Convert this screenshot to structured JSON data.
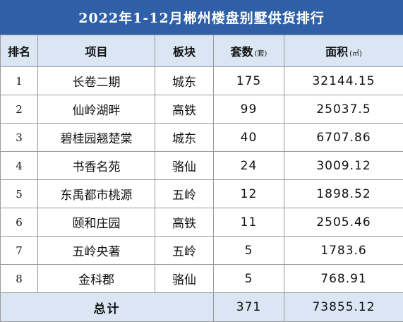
{
  "title": "2022年1-12月郴州楼盘别墅供货排行",
  "headers": {
    "rank": "排名",
    "project": "项目",
    "block": "板块",
    "units": "套数",
    "units_unit": "(套)",
    "area": "面积",
    "area_unit": "(㎡)"
  },
  "rows": [
    {
      "rank": "1",
      "project": "长卷二期",
      "block": "城东",
      "units": "175",
      "area": "32144.15"
    },
    {
      "rank": "2",
      "project": "仙岭湖畔",
      "block": "高铁",
      "units": "99",
      "area": "25037.5"
    },
    {
      "rank": "3",
      "project": "碧桂园翘楚棠",
      "block": "城东",
      "units": "40",
      "area": "6707.86"
    },
    {
      "rank": "4",
      "project": "书香名苑",
      "block": "骆仙",
      "units": "24",
      "area": "3009.12"
    },
    {
      "rank": "5",
      "project": "东禹都市桃源",
      "block": "五岭",
      "units": "12",
      "area": "1898.52"
    },
    {
      "rank": "6",
      "project": "颐和庄园",
      "block": "高铁",
      "units": "11",
      "area": "2505.46"
    },
    {
      "rank": "7",
      "project": "五岭央著",
      "block": "五岭",
      "units": "5",
      "area": "1783.6"
    },
    {
      "rank": "8",
      "project": "金科郡",
      "block": "骆仙",
      "units": "5",
      "area": "768.91"
    }
  ],
  "total": {
    "label": "总计",
    "units": "371",
    "area": "73855.12"
  },
  "colors": {
    "title_bg": "#2f5fa6",
    "header_bg": "#dae6f3",
    "border": "#9a9a9a"
  }
}
